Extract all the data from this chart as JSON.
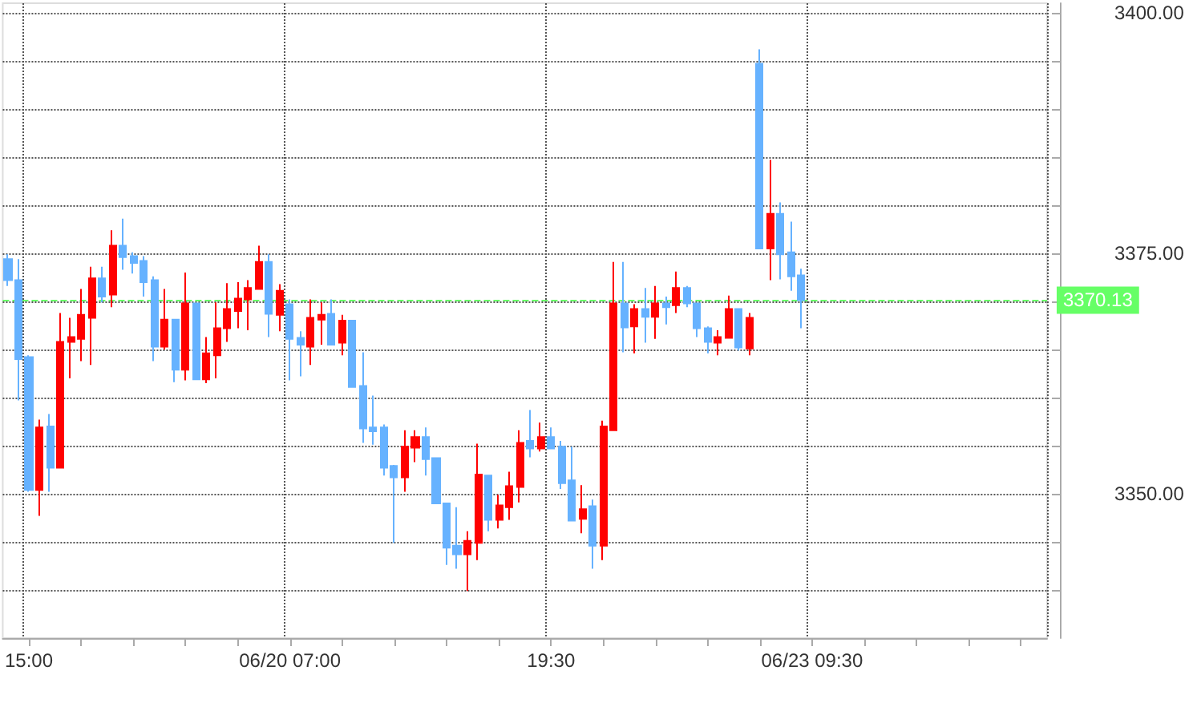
{
  "chart_data": {
    "type": "candlestick",
    "categories": [
      null,
      null,
      "15:00",
      null,
      null,
      null,
      null,
      null,
      null,
      null,
      null,
      null,
      null,
      null,
      null,
      null,
      null,
      null,
      null,
      null,
      null,
      null,
      null,
      null,
      null,
      null,
      null,
      "06/20 07:00",
      null,
      null,
      null,
      null,
      null,
      null,
      null,
      null,
      null,
      null,
      null,
      null,
      null,
      null,
      null,
      null,
      null,
      null,
      null,
      null,
      null,
      null,
      null,
      null,
      "19:30",
      null,
      null,
      null,
      null,
      null,
      null,
      null,
      null,
      null,
      null,
      null,
      null,
      null,
      null,
      null,
      null,
      null,
      null,
      null,
      null,
      null,
      null,
      null,
      null,
      "06/23 09:30",
      null,
      null,
      null,
      null,
      null,
      null,
      null,
      null,
      null,
      null,
      null,
      null,
      null,
      null,
      null,
      null,
      null,
      null,
      null,
      null,
      null,
      null
    ],
    "ohlc": [
      [
        3374.4,
        3374.9,
        3371.6,
        3372.2
      ],
      [
        3372.2,
        3374.4,
        3359.7,
        3364.0
      ],
      [
        3364.2,
        3364.4,
        3350.2,
        3350.4
      ],
      [
        3350.4,
        3357.7,
        3347.7,
        3356.9
      ],
      [
        3357.0,
        3358.3,
        3350.2,
        3352.7
      ],
      [
        3352.7,
        3368.8,
        3352.7,
        3365.8
      ],
      [
        3365.8,
        3368.3,
        3362.0,
        3366.3
      ],
      [
        3366.1,
        3371.3,
        3363.8,
        3368.6
      ],
      [
        3368.3,
        3373.6,
        3363.4,
        3372.4
      ],
      [
        3372.4,
        3373.6,
        3369.9,
        3370.5
      ],
      [
        3370.7,
        3377.4,
        3369.4,
        3375.8
      ],
      [
        3375.8,
        3378.6,
        3373.3,
        3374.6
      ],
      [
        3374.7,
        3375.1,
        3372.9,
        3374.0
      ],
      [
        3374.2,
        3374.7,
        3370.5,
        3372.0
      ],
      [
        3372.2,
        3372.6,
        3363.8,
        3365.3
      ],
      [
        3365.3,
        3371.3,
        3365.0,
        3368.1
      ],
      [
        3368.1,
        3368.1,
        3361.6,
        3362.9
      ],
      [
        3362.9,
        3373.0,
        3361.8,
        3369.8
      ],
      [
        3369.8,
        3369.8,
        3361.9,
        3361.9
      ],
      [
        3361.9,
        3366.3,
        3361.5,
        3364.6
      ],
      [
        3364.4,
        3369.9,
        3362.0,
        3367.2
      ],
      [
        3367.2,
        3371.9,
        3365.8,
        3369.2
      ],
      [
        3369.0,
        3372.0,
        3367.2,
        3370.3
      ],
      [
        3370.2,
        3372.2,
        3367.0,
        3371.4
      ],
      [
        3371.3,
        3375.8,
        3371.3,
        3374.1
      ],
      [
        3374.1,
        3374.9,
        3366.3,
        3368.7
      ],
      [
        3368.6,
        3371.8,
        3366.9,
        3371.1
      ],
      [
        3369.7,
        3370.2,
        3361.8,
        3366.1
      ],
      [
        3366.2,
        3366.9,
        3362.2,
        3365.5
      ],
      [
        3365.3,
        3370.2,
        3363.4,
        3368.3
      ],
      [
        3368.1,
        3369.9,
        3365.5,
        3368.6
      ],
      [
        3368.7,
        3370.2,
        3365.5,
        3365.5
      ],
      [
        3365.7,
        3368.6,
        3364.4,
        3368.0
      ],
      [
        3368.0,
        3368.0,
        3361.1,
        3361.1
      ],
      [
        3361.2,
        3364.7,
        3355.3,
        3356.8
      ],
      [
        3356.9,
        3360.2,
        3355.1,
        3356.5
      ],
      [
        3356.9,
        3357.2,
        3351.9,
        3352.7
      ],
      [
        3352.9,
        3353.0,
        3344.9,
        3351.7
      ],
      [
        3351.7,
        3356.6,
        3350.2,
        3354.9
      ],
      [
        3354.8,
        3356.6,
        3353.3,
        3355.9
      ],
      [
        3355.9,
        3356.9,
        3351.9,
        3353.6
      ],
      [
        3353.7,
        3353.7,
        3349.0,
        3349.0
      ],
      [
        3349.0,
        3349.0,
        3342.6,
        3344.4
      ],
      [
        3344.6,
        3348.6,
        3342.2,
        3343.7
      ],
      [
        3343.7,
        3346.1,
        3339.9,
        3345.1
      ],
      [
        3344.9,
        3355.2,
        3343.1,
        3352.0
      ],
      [
        3351.9,
        3351.9,
        3346.1,
        3347.3
      ],
      [
        3347.3,
        3349.9,
        3346.4,
        3348.8
      ],
      [
        3348.6,
        3352.3,
        3347.3,
        3350.8
      ],
      [
        3350.7,
        3356.6,
        3349.1,
        3355.3
      ],
      [
        3355.5,
        3358.7,
        3353.8,
        3354.7
      ],
      [
        3354.7,
        3357.4,
        3354.4,
        3355.9
      ],
      [
        3355.9,
        3356.9,
        3354.7,
        3354.7
      ],
      [
        3354.9,
        3355.5,
        3350.5,
        3351.1
      ],
      [
        3351.4,
        3354.9,
        3347.2,
        3347.2
      ],
      [
        3347.4,
        3350.9,
        3345.9,
        3348.4
      ],
      [
        3348.7,
        3349.4,
        3342.2,
        3344.6
      ],
      [
        3344.6,
        3357.6,
        3343.1,
        3357.0
      ],
      [
        3356.6,
        3374.1,
        3356.6,
        3369.8
      ],
      [
        3369.8,
        3374.1,
        3364.7,
        3367.3
      ],
      [
        3367.4,
        3369.7,
        3364.6,
        3369.2
      ],
      [
        3369.2,
        3371.4,
        3365.7,
        3368.4
      ],
      [
        3368.4,
        3371.6,
        3366.1,
        3369.8
      ],
      [
        3369.8,
        3370.5,
        3367.6,
        3369.4
      ],
      [
        3369.6,
        3373.1,
        3368.8,
        3371.4
      ],
      [
        3371.4,
        3371.6,
        3369.4,
        3369.8
      ],
      [
        3369.8,
        3369.8,
        3366.3,
        3367.2
      ],
      [
        3367.2,
        3367.4,
        3364.6,
        3365.8
      ],
      [
        3365.7,
        3367.0,
        3364.4,
        3366.3
      ],
      [
        3366.2,
        3370.6,
        3366.2,
        3369.2
      ],
      [
        3369.2,
        3369.2,
        3364.9,
        3365.2
      ],
      [
        3365.1,
        3368.8,
        3364.4,
        3368.3
      ],
      [
        3394.7,
        3396.2,
        3375.5,
        3375.5
      ],
      [
        3375.5,
        3384.7,
        3372.2,
        3379.1
      ],
      [
        3379.1,
        3380.3,
        3372.3,
        3374.9
      ],
      [
        3375.1,
        3378.3,
        3371.1,
        3372.6
      ],
      [
        3372.7,
        3373.4,
        3367.2,
        3370.13
      ],
      null,
      null,
      null,
      null,
      null,
      null,
      null,
      null,
      null,
      null,
      null,
      null,
      null,
      null,
      null,
      null,
      null,
      null,
      null,
      null,
      null,
      null,
      null
    ],
    "colors": [
      "#66b2ff",
      "#66b2ff",
      "#66b2ff",
      "#ff0000",
      "#66b2ff",
      "#ff0000",
      "#ff0000",
      "#ff0000",
      "#ff0000",
      "#66b2ff",
      "#ff0000",
      "#66b2ff",
      "#66b2ff",
      "#66b2ff",
      "#66b2ff",
      "#ff0000",
      "#66b2ff",
      "#ff0000",
      "#66b2ff",
      "#ff0000",
      "#ff0000",
      "#ff0000",
      "#ff0000",
      "#ff0000",
      "#ff0000",
      "#66b2ff",
      "#ff0000",
      "#66b2ff",
      "#66b2ff",
      "#ff0000",
      "#ff0000",
      "#66b2ff",
      "#ff0000",
      "#66b2ff",
      "#66b2ff",
      "#66b2ff",
      "#66b2ff",
      "#66b2ff",
      "#ff0000",
      "#ff0000",
      "#66b2ff",
      "#66b2ff",
      "#66b2ff",
      "#66b2ff",
      "#ff0000",
      "#ff0000",
      "#66b2ff",
      "#ff0000",
      "#ff0000",
      "#ff0000",
      "#66b2ff",
      "#ff0000",
      "#66b2ff",
      "#66b2ff",
      "#66b2ff",
      "#ff0000",
      "#66b2ff",
      "#ff0000",
      "#ff0000",
      "#66b2ff",
      "#ff0000",
      "#66b2ff",
      "#ff0000",
      "#66b2ff",
      "#ff0000",
      "#66b2ff",
      "#66b2ff",
      "#66b2ff",
      "#ff0000",
      "#ff0000",
      "#66b2ff",
      "#ff0000",
      "#66b2ff",
      "#ff0000",
      "#66b2ff",
      "#66b2ff",
      "#66b2ff",
      null,
      null,
      null,
      null,
      null,
      null,
      null,
      null,
      null,
      null,
      null,
      null,
      null,
      null,
      null,
      null,
      null,
      null,
      null,
      null,
      null,
      null,
      null
    ],
    "ylim": [
      3335,
      3401
    ],
    "yticks": [
      {
        "value": 3340,
        "label": null
      },
      {
        "value": 3345,
        "label": null
      },
      {
        "value": 3350,
        "label": "3350.00"
      },
      {
        "value": 3355,
        "label": null
      },
      {
        "value": 3360,
        "label": null
      },
      {
        "value": 3365,
        "label": null
      },
      {
        "value": 3370,
        "label": null
      },
      {
        "value": 3375,
        "label": "3375.00"
      },
      {
        "value": 3380,
        "label": null
      },
      {
        "value": 3385,
        "label": null
      },
      {
        "value": 3390,
        "label": null
      },
      {
        "value": 3395,
        "label": null
      },
      {
        "value": 3400,
        "label": "3400.00"
      }
    ],
    "ref_lines": [
      {
        "axis": "y",
        "value": 3370.13,
        "label": "3370.13",
        "color": "#66ff66",
        "line_style": "dashed"
      }
    ],
    "grid": true
  }
}
